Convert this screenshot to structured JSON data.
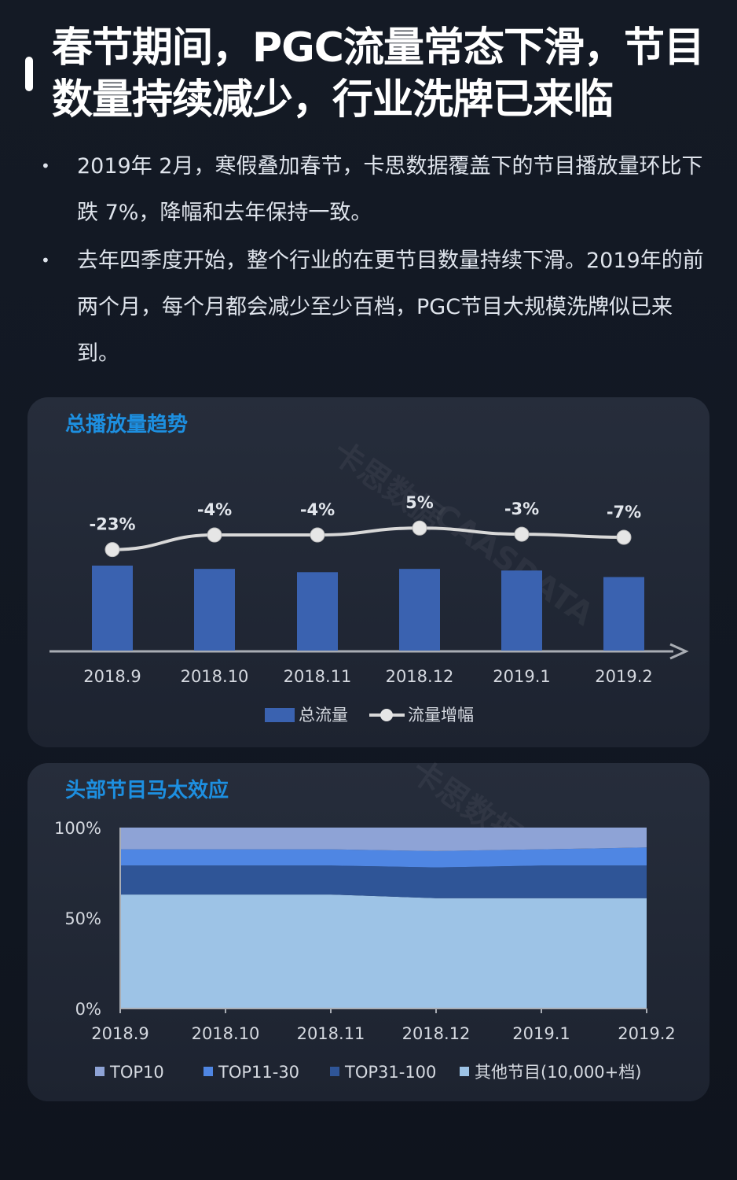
{
  "header": {
    "title": "春节期间，PGC流量常态下滑，节目数量持续减少，行业洗牌已来临"
  },
  "bullets": [
    "2019年 2月，寒假叠加春节，卡思数据覆盖下的节目播放量环比下跌 7%，降幅和去年保持一致。",
    "去年四季度开始，整个行业的在更节目数量持续下滑。2019年的前两个月，每个月都会减少至少百档，PGC节目大规模洗牌似已来到。"
  ],
  "watermark": {
    "cn": "卡思数据",
    "en": "CAASDATA"
  },
  "chart_data": [
    {
      "type": "bar",
      "title": "总播放量趋势",
      "categories": [
        "2018.9",
        "2018.10",
        "2018.11",
        "2018.12",
        "2019.1",
        "2019.2"
      ],
      "series": [
        {
          "name": "总流量",
          "kind": "bar",
          "values": [
            104,
            100,
            96,
            100,
            98,
            90
          ]
        },
        {
          "name": "流量增幅",
          "kind": "line",
          "values": [
            -23,
            -4,
            -4,
            5,
            -3,
            -7
          ]
        }
      ],
      "data_labels": [
        "-23%",
        "-4%",
        "-4%",
        "5%",
        "-3%",
        "-7%"
      ],
      "colors": {
        "bar": "#3a62b0",
        "line": "#d8d8d8",
        "axis": "#a9adb4"
      },
      "legend": "bottom"
    },
    {
      "type": "area",
      "stacked": true,
      "percent": true,
      "title": "头部节目马太效应",
      "categories": [
        "2018.9",
        "2018.10",
        "2018.11",
        "2018.12",
        "2019.1",
        "2019.2"
      ],
      "y_ticks": [
        "100%",
        "50%",
        "0%"
      ],
      "ylim": [
        0,
        100
      ],
      "series": [
        {
          "name": "其他节目(10,000+档)",
          "color": "#9dc3e6",
          "values": [
            63,
            63,
            63,
            61,
            61,
            61
          ]
        },
        {
          "name": "TOP31-100",
          "color": "#2f5597",
          "values": [
            16,
            16,
            16,
            17,
            18,
            18
          ]
        },
        {
          "name": "TOP11-30",
          "color": "#4f86e3",
          "values": [
            9,
            9,
            9,
            9,
            9,
            10
          ]
        },
        {
          "name": "TOP10",
          "color": "#8ea3d6",
          "values": [
            12,
            12,
            12,
            13,
            12,
            11
          ]
        }
      ],
      "legend_order": [
        "TOP10",
        "TOP11-30",
        "TOP31-100",
        "其他节目(10,000+档)"
      ],
      "legend": "bottom"
    }
  ]
}
